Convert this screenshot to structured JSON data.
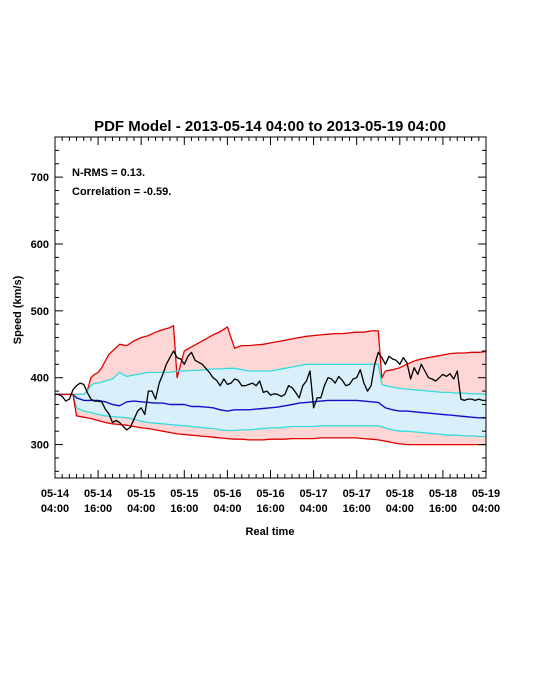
{
  "chart_data": {
    "type": "line",
    "title": "PDF Model - 2013-05-14 04:00 to 2013-05-19 04:00",
    "xlabel": "Real time",
    "ylabel": "Speed (km/s)",
    "annotations": [
      "N-RMS = 0.13.",
      "Correlation = -0.59."
    ],
    "xlim": [
      0,
      120
    ],
    "ylim": [
      250,
      760
    ],
    "x_units": "hours from 2013-05-14 04:00",
    "x_ticks": [
      {
        "x": 0,
        "line1": "05-14",
        "line2": "04:00"
      },
      {
        "x": 12,
        "line1": "05-14",
        "line2": "16:00"
      },
      {
        "x": 24,
        "line1": "05-15",
        "line2": "04:00"
      },
      {
        "x": 36,
        "line1": "05-15",
        "line2": "16:00"
      },
      {
        "x": 48,
        "line1": "05-16",
        "line2": "04:00"
      },
      {
        "x": 60,
        "line1": "05-16",
        "line2": "16:00"
      },
      {
        "x": 72,
        "line1": "05-17",
        "line2": "04:00"
      },
      {
        "x": 84,
        "line1": "05-17",
        "line2": "16:00"
      },
      {
        "x": 96,
        "line1": "05-18",
        "line2": "04:00"
      },
      {
        "x": 108,
        "line1": "05-18",
        "line2": "16:00"
      },
      {
        "x": 120,
        "line1": "05-19",
        "line2": "04:00"
      }
    ],
    "y_ticks": [
      300,
      400,
      500,
      600,
      700
    ],
    "colors": {
      "outer_fill": "#ffd6d6",
      "outer_edge": "#e00000",
      "inner_fill": "#d9effa",
      "inner_edge": "#33dddd",
      "median": "#1010cc",
      "observed": "#000000"
    },
    "series": [
      {
        "role": "upper-outer",
        "x": [
          0,
          1,
          2,
          3,
          4,
          5,
          6,
          7,
          8,
          9,
          10,
          11,
          12,
          13,
          14,
          15,
          16,
          18,
          20,
          22,
          24,
          26,
          28,
          30,
          32,
          33,
          34,
          36,
          38,
          40,
          42,
          44,
          46,
          48,
          50,
          51,
          52,
          54,
          56,
          58,
          60,
          62,
          64,
          66,
          68,
          70,
          72,
          74,
          76,
          78,
          80,
          82,
          84,
          86,
          88,
          90,
          91,
          92,
          94,
          96,
          98,
          100,
          102,
          104,
          106,
          108,
          110,
          112,
          114,
          116,
          118,
          120
        ],
        "values": [
          375,
          375,
          375,
          375,
          375,
          375,
          375,
          375,
          375,
          380,
          400,
          405,
          408,
          415,
          425,
          435,
          440,
          450,
          448,
          455,
          460,
          463,
          468,
          472,
          475,
          478,
          400,
          440,
          446,
          452,
          458,
          464,
          469,
          476,
          444,
          446,
          448,
          448,
          449,
          450,
          452,
          454,
          456,
          458,
          460,
          462,
          463,
          464,
          465,
          466,
          466,
          467,
          468,
          468,
          470,
          470,
          400,
          410,
          412,
          415,
          420,
          425,
          428,
          430,
          432,
          434,
          436,
          437,
          437,
          438,
          438,
          439
        ]
      },
      {
        "role": "upper-inner",
        "x": [
          0,
          5,
          6,
          7,
          8,
          9,
          10,
          11,
          12,
          14,
          16,
          18,
          20,
          22,
          24,
          26,
          28,
          30,
          32,
          34,
          36,
          38,
          40,
          42,
          44,
          46,
          48,
          50,
          52,
          54,
          56,
          58,
          60,
          62,
          64,
          66,
          68,
          70,
          72,
          74,
          76,
          78,
          80,
          82,
          84,
          86,
          88,
          90,
          91,
          92,
          94,
          96,
          98,
          100,
          102,
          104,
          106,
          108,
          110,
          112,
          114,
          116,
          118,
          120
        ],
        "values": [
          375,
          375,
          375,
          375,
          375,
          380,
          388,
          392,
          392,
          395,
          398,
          408,
          402,
          404,
          406,
          408,
          408,
          408,
          408,
          410,
          410,
          411,
          411,
          412,
          413,
          413,
          414,
          414,
          412,
          410,
          410,
          410,
          410,
          412,
          414,
          416,
          418,
          420,
          420,
          420,
          420,
          420,
          420,
          420,
          420,
          420,
          420,
          420,
          390,
          388,
          386,
          384,
          383,
          382,
          381,
          380,
          379,
          378,
          378,
          377,
          377,
          376,
          376,
          375
        ]
      },
      {
        "role": "median",
        "x": [
          0,
          5,
          6,
          8,
          10,
          12,
          14,
          16,
          18,
          20,
          22,
          24,
          26,
          28,
          30,
          32,
          34,
          36,
          38,
          40,
          42,
          44,
          46,
          48,
          50,
          52,
          54,
          56,
          58,
          60,
          62,
          64,
          66,
          68,
          70,
          72,
          74,
          76,
          78,
          80,
          82,
          84,
          86,
          88,
          90,
          92,
          94,
          96,
          98,
          100,
          102,
          104,
          106,
          108,
          110,
          112,
          114,
          116,
          118,
          120
        ],
        "values": [
          375,
          375,
          370,
          366,
          366,
          366,
          364,
          360,
          358,
          364,
          365,
          364,
          363,
          362,
          362,
          360,
          360,
          360,
          357,
          357,
          356,
          355,
          352,
          350,
          352,
          352,
          352,
          353,
          354,
          355,
          356,
          358,
          360,
          362,
          363,
          364,
          365,
          366,
          366,
          366,
          366,
          366,
          365,
          364,
          363,
          355,
          352,
          350,
          350,
          349,
          348,
          347,
          346,
          345,
          344,
          343,
          342,
          341,
          340,
          340
        ]
      },
      {
        "role": "lower-inner",
        "x": [
          0,
          5,
          6,
          8,
          10,
          12,
          14,
          16,
          18,
          20,
          22,
          24,
          26,
          28,
          30,
          32,
          34,
          36,
          38,
          40,
          42,
          44,
          46,
          48,
          50,
          52,
          54,
          56,
          58,
          60,
          62,
          64,
          66,
          68,
          70,
          72,
          74,
          76,
          78,
          80,
          82,
          84,
          86,
          88,
          90,
          92,
          94,
          96,
          98,
          100,
          102,
          104,
          106,
          108,
          110,
          112,
          114,
          116,
          118,
          120
        ],
        "values": [
          375,
          375,
          355,
          350,
          348,
          345,
          343,
          342,
          341,
          340,
          338,
          335,
          333,
          332,
          331,
          330,
          329,
          328,
          327,
          326,
          325,
          324,
          322,
          321,
          321,
          322,
          322,
          323,
          324,
          325,
          325,
          326,
          327,
          327,
          327,
          327,
          328,
          328,
          328,
          328,
          328,
          328,
          328,
          328,
          328,
          325,
          322,
          320,
          320,
          319,
          318,
          317,
          316,
          315,
          314,
          314,
          313,
          313,
          312,
          312
        ]
      },
      {
        "role": "lower-outer",
        "x": [
          0,
          5,
          6,
          8,
          10,
          12,
          14,
          16,
          18,
          20,
          22,
          24,
          26,
          28,
          30,
          32,
          34,
          36,
          38,
          40,
          42,
          44,
          46,
          48,
          50,
          52,
          54,
          56,
          58,
          60,
          62,
          64,
          66,
          68,
          70,
          72,
          74,
          76,
          78,
          80,
          82,
          84,
          86,
          88,
          90,
          92,
          94,
          96,
          98,
          100,
          102,
          104,
          106,
          108,
          110,
          112,
          114,
          116,
          118,
          120
        ],
        "values": [
          375,
          375,
          343,
          341,
          339,
          336,
          333,
          331,
          330,
          329,
          327,
          325,
          324,
          322,
          320,
          318,
          316,
          315,
          314,
          313,
          312,
          311,
          310,
          309,
          308,
          308,
          307,
          307,
          307,
          308,
          308,
          308,
          309,
          309,
          309,
          309,
          310,
          310,
          310,
          310,
          310,
          310,
          309,
          308,
          307,
          305,
          303,
          301,
          300,
          300,
          300,
          300,
          300,
          300,
          300,
          300,
          300,
          300,
          300,
          300
        ]
      },
      {
        "role": "observed",
        "x": [
          0,
          1,
          2,
          3,
          4,
          5,
          6,
          7,
          8,
          9,
          10,
          11,
          12,
          13,
          14,
          15,
          16,
          17,
          18,
          19,
          20,
          21,
          22,
          23,
          24,
          25,
          26,
          27,
          28,
          29,
          30,
          31,
          32,
          33,
          34,
          35,
          36,
          37,
          38,
          39,
          40,
          41,
          42,
          43,
          44,
          45,
          46,
          47,
          48,
          49,
          50,
          51,
          52,
          53,
          54,
          55,
          56,
          57,
          58,
          59,
          60,
          61,
          62,
          63,
          64,
          65,
          66,
          67,
          68,
          69,
          70,
          71,
          72,
          73,
          74,
          75,
          76,
          77,
          78,
          79,
          80,
          81,
          82,
          83,
          84,
          85,
          86,
          87,
          88,
          89,
          90,
          91,
          92,
          93,
          94,
          95,
          96,
          97,
          98,
          99,
          100,
          101,
          102,
          103,
          104,
          105,
          106,
          107,
          108,
          109,
          110,
          111,
          112,
          113,
          114,
          115,
          116,
          117,
          118,
          119,
          120
        ],
        "values": [
          375,
          375,
          372,
          365,
          368,
          382,
          388,
          392,
          390,
          378,
          368,
          365,
          365,
          364,
          353,
          346,
          333,
          336,
          333,
          327,
          322,
          326,
          338,
          350,
          355,
          345,
          380,
          380,
          368,
          392,
          405,
          420,
          430,
          440,
          430,
          428,
          420,
          432,
          438,
          426,
          423,
          420,
          414,
          408,
          400,
          396,
          388,
          398,
          390,
          392,
          398,
          396,
          388,
          388,
          390,
          392,
          388,
          395,
          378,
          380,
          374,
          376,
          375,
          372,
          375,
          388,
          385,
          378,
          370,
          388,
          395,
          410,
          355,
          370,
          370,
          388,
          400,
          398,
          392,
          402,
          396,
          388,
          390,
          398,
          400,
          412,
          392,
          380,
          388,
          420,
          438,
          430,
          420,
          432,
          428,
          426,
          420,
          430,
          422,
          398,
          415,
          405,
          420,
          410,
          400,
          398,
          395,
          400,
          405,
          402,
          406,
          398,
          410,
          368,
          366,
          368,
          368,
          366,
          368,
          366,
          366
        ]
      }
    ]
  }
}
